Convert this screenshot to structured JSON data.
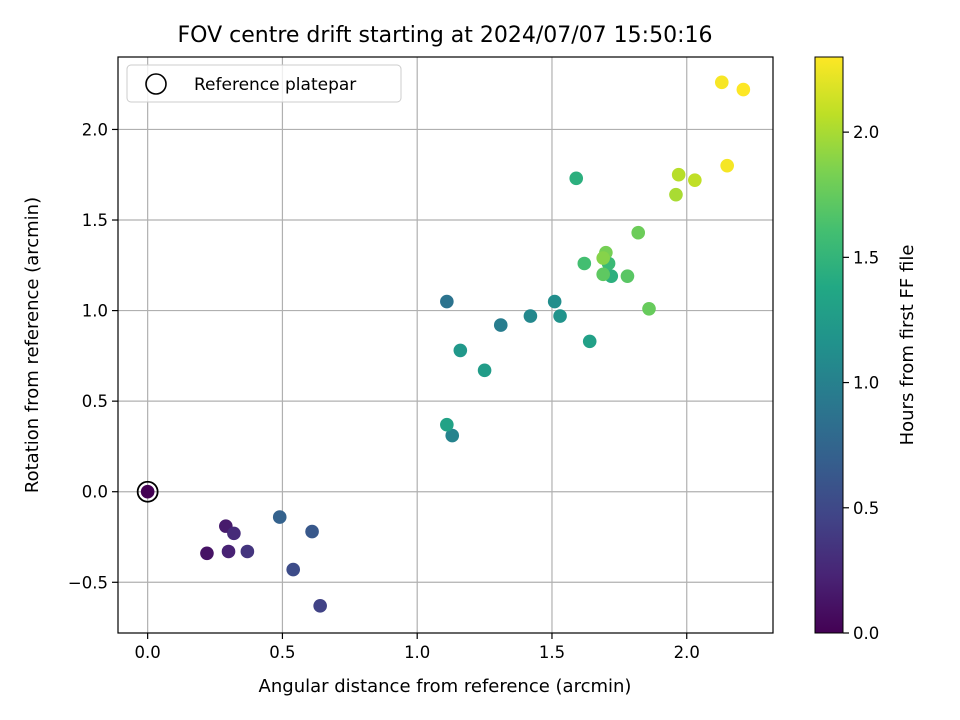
{
  "chart_data": {
    "type": "scatter",
    "title": "FOV centre drift starting at 2024/07/07 15:50:16",
    "xlabel": "Angular distance from reference (arcmin)",
    "ylabel": "Rotation from reference (arcmin)",
    "xlim": [
      -0.11,
      2.32
    ],
    "ylim": [
      -0.78,
      2.4
    ],
    "xticks": [
      0.0,
      0.5,
      1.0,
      1.5,
      2.0
    ],
    "xtick_labels": [
      "0.0",
      "0.5",
      "1.0",
      "1.5",
      "2.0"
    ],
    "yticks": [
      -0.5,
      0.0,
      0.5,
      1.0,
      1.5,
      2.0
    ],
    "ytick_labels": [
      "−0.5",
      "0.0",
      "0.5",
      "1.0",
      "1.5",
      "2.0"
    ],
    "grid": true,
    "colormap": "viridis",
    "legend": {
      "placement": "top-left",
      "entries": [
        "Reference platepar"
      ]
    },
    "reference_point": {
      "x": 0.0,
      "y": 0.0
    },
    "colorbar": {
      "label": "Hours from first FF file",
      "range": [
        0.0,
        2.3
      ],
      "ticks": [
        0.0,
        0.5,
        1.0,
        1.5,
        2.0
      ],
      "tick_labels": [
        "0.0",
        "0.5",
        "1.0",
        "1.5",
        "2.0"
      ]
    },
    "points": [
      {
        "x": 0.0,
        "y": 0.0,
        "c": 0.0
      },
      {
        "x": 0.22,
        "y": -0.34,
        "c": 0.12
      },
      {
        "x": 0.29,
        "y": -0.19,
        "c": 0.17
      },
      {
        "x": 0.3,
        "y": -0.33,
        "c": 0.22
      },
      {
        "x": 0.32,
        "y": -0.23,
        "c": 0.28
      },
      {
        "x": 0.37,
        "y": -0.33,
        "c": 0.35
      },
      {
        "x": 0.64,
        "y": -0.63,
        "c": 0.45
      },
      {
        "x": 0.54,
        "y": -0.43,
        "c": 0.53
      },
      {
        "x": 0.61,
        "y": -0.22,
        "c": 0.63
      },
      {
        "x": 0.49,
        "y": -0.14,
        "c": 0.72
      },
      {
        "x": 1.11,
        "y": 1.05,
        "c": 0.87
      },
      {
        "x": 1.31,
        "y": 0.92,
        "c": 0.97
      },
      {
        "x": 1.13,
        "y": 0.31,
        "c": 1.02
      },
      {
        "x": 1.42,
        "y": 0.97,
        "c": 1.07
      },
      {
        "x": 1.51,
        "y": 1.05,
        "c": 1.12
      },
      {
        "x": 1.53,
        "y": 0.97,
        "c": 1.17
      },
      {
        "x": 1.16,
        "y": 0.78,
        "c": 1.22
      },
      {
        "x": 1.25,
        "y": 0.67,
        "c": 1.26
      },
      {
        "x": 1.64,
        "y": 0.83,
        "c": 1.3
      },
      {
        "x": 1.11,
        "y": 0.37,
        "c": 1.32
      },
      {
        "x": 1.59,
        "y": 1.73,
        "c": 1.45
      },
      {
        "x": 1.72,
        "y": 1.19,
        "c": 1.45
      },
      {
        "x": 1.71,
        "y": 1.26,
        "c": 1.55
      },
      {
        "x": 1.62,
        "y": 1.26,
        "c": 1.6
      },
      {
        "x": 1.78,
        "y": 1.19,
        "c": 1.7
      },
      {
        "x": 1.69,
        "y": 1.2,
        "c": 1.72
      },
      {
        "x": 1.86,
        "y": 1.01,
        "c": 1.76
      },
      {
        "x": 1.82,
        "y": 1.43,
        "c": 1.78
      },
      {
        "x": 1.7,
        "y": 1.32,
        "c": 1.82
      },
      {
        "x": 1.69,
        "y": 1.29,
        "c": 1.88
      },
      {
        "x": 1.96,
        "y": 1.64,
        "c": 2.0
      },
      {
        "x": 1.97,
        "y": 1.75,
        "c": 2.05
      },
      {
        "x": 2.03,
        "y": 1.72,
        "c": 2.08
      },
      {
        "x": 2.15,
        "y": 1.8,
        "c": 2.27
      },
      {
        "x": 2.13,
        "y": 2.26,
        "c": 2.28
      },
      {
        "x": 2.21,
        "y": 2.22,
        "c": 2.3
      }
    ]
  }
}
